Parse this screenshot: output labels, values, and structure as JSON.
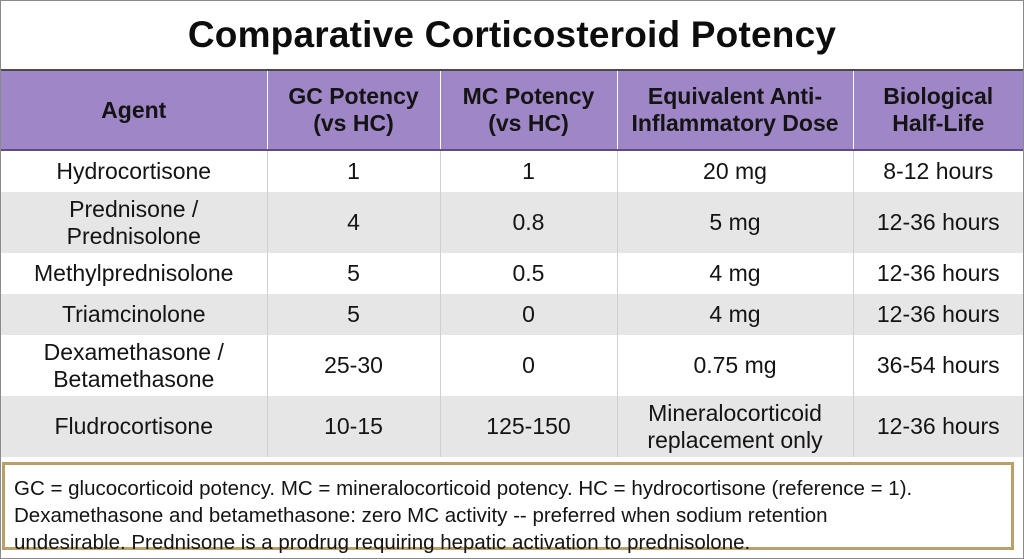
{
  "title": "Comparative Corticosteroid Potency",
  "headers": [
    [
      "Agent"
    ],
    [
      "GC Potency",
      "(vs HC)"
    ],
    [
      "MC Potency",
      "(vs HC)"
    ],
    [
      "Equivalent Anti-",
      "Inflammatory Dose"
    ],
    [
      "Biological",
      "Half-Life"
    ]
  ],
  "rows": [
    {
      "agent": [
        "Hydrocortisone"
      ],
      "gc": "1",
      "mc": "1",
      "dose": [
        "20 mg"
      ],
      "half_life": "8-12 hours"
    },
    {
      "agent": [
        "Prednisone /",
        "Prednisolone"
      ],
      "gc": "4",
      "mc": "0.8",
      "dose": [
        "5 mg"
      ],
      "half_life": "12-36 hours"
    },
    {
      "agent": [
        "Methylprednisolone"
      ],
      "gc": "5",
      "mc": "0.5",
      "dose": [
        "4 mg"
      ],
      "half_life": "12-36 hours"
    },
    {
      "agent": [
        "Triamcinolone"
      ],
      "gc": "5",
      "mc": "0",
      "dose": [
        "4 mg"
      ],
      "half_life": "12-36 hours"
    },
    {
      "agent": [
        "Dexamethasone /",
        "Betamethasone"
      ],
      "gc": "25-30",
      "mc": "0",
      "dose": [
        "0.75 mg"
      ],
      "half_life": "36-54 hours"
    },
    {
      "agent": [
        "Fludrocortisone"
      ],
      "gc": "10-15",
      "mc": "125-150",
      "dose": [
        "Mineralocorticoid",
        "replacement only"
      ],
      "half_life": "12-36 hours"
    }
  ],
  "footnote": [
    "GC = glucocorticoid potency. MC = mineralocorticoid potency. HC = hydrocortisone (reference = 1).",
    "Dexamethasone and betamethasone: zero MC activity -- preferred when sodium retention",
    "undesirable. Prednisone is a prodrug requiring hepatic activation to prednisolone."
  ],
  "colors": {
    "header_bg": "#9f86c6",
    "row_alt_bg": "#e6e6e6",
    "footnote_border": "#b8a06a"
  }
}
